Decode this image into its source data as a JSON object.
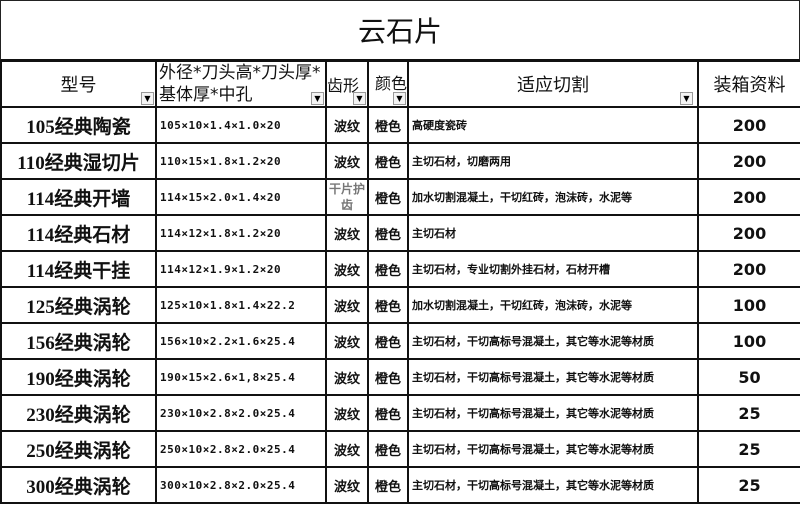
{
  "title": "云石片",
  "headers": {
    "model": "型号",
    "spec": "外径*刀头高*刀头厚*基体厚*中孔",
    "tooth": "齿形",
    "color": "颜色",
    "use": "适应切割",
    "qty": "装箱资料"
  },
  "filter_icon": "dropdown-arrow-icon",
  "rows": [
    {
      "model": "105经典陶瓷",
      "spec": "105×10×1.4×1.0×20",
      "tooth": "波纹",
      "color": "橙色",
      "use": "高硬度瓷砖",
      "qty": "200"
    },
    {
      "model": "110经典湿切片",
      "spec": "110×15×1.8×1.2×20",
      "tooth": "波纹",
      "color": "橙色",
      "use": "主切石材，切磨两用",
      "qty": "200"
    },
    {
      "model": "114经典开墙",
      "spec": "114×15×2.0×1.4×20",
      "tooth": "干片护齿",
      "color": "橙色",
      "use": "加水切割混凝土，干切红砖，泡沫砖，水泥等",
      "qty": "200"
    },
    {
      "model": "114经典石材",
      "spec": "114×12×1.8×1.2×20",
      "tooth": "波纹",
      "color": "橙色",
      "use": "主切石材",
      "qty": "200"
    },
    {
      "model": "114经典干挂",
      "spec": "114×12×1.9×1.2×20",
      "tooth": "波纹",
      "color": "橙色",
      "use": "主切石材，专业切割外挂石材，石材开槽",
      "qty": "200"
    },
    {
      "model": "125经典涡轮",
      "spec": "125×10×1.8×1.4×22.2",
      "tooth": "波纹",
      "color": "橙色",
      "use": "加水切割混凝土，干切红砖，泡沫砖，水泥等",
      "qty": "100"
    },
    {
      "model": "156经典涡轮",
      "spec": "156×10×2.2×1.6×25.4",
      "tooth": "波纹",
      "color": "橙色",
      "use": "主切石材，干切高标号混凝土，其它等水泥等材质",
      "qty": "100"
    },
    {
      "model": "190经典涡轮",
      "spec": "190×15×2.6×1,8×25.4",
      "tooth": "波纹",
      "color": "橙色",
      "use": "主切石材，干切高标号混凝土，其它等水泥等材质",
      "qty": "50"
    },
    {
      "model": "230经典涡轮",
      "spec": "230×10×2.8×2.0×25.4",
      "tooth": "波纹",
      "color": "橙色",
      "use": "主切石材，干切高标号混凝土，其它等水泥等材质",
      "qty": "25"
    },
    {
      "model": "250经典涡轮",
      "spec": "250×10×2.8×2.0×25.4",
      "tooth": "波纹",
      "color": "橙色",
      "use": "主切石材，干切高标号混凝土，其它等水泥等材质",
      "qty": "25"
    },
    {
      "model": "300经典涡轮",
      "spec": "300×10×2.8×2.0×25.4",
      "tooth": "波纹",
      "color": "橙色",
      "use": "主切石材，干切高标号混凝土，其它等水泥等材质",
      "qty": "25"
    }
  ]
}
